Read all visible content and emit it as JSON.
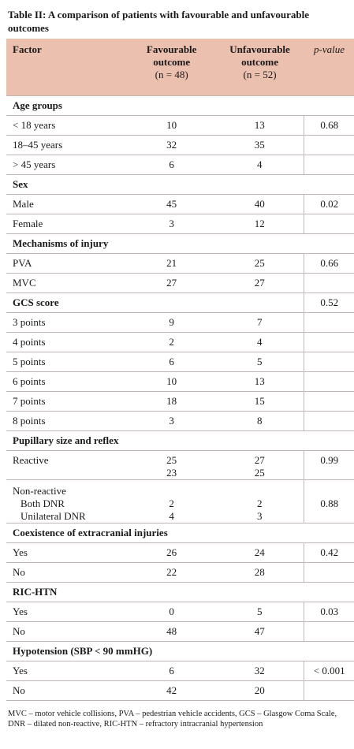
{
  "caption": "Table II: A comparison of patients with favourable and unfavourable outcomes",
  "header": {
    "factor": "Factor",
    "fav_l1": "Favourable",
    "fav_l2": "outcome",
    "fav_l3": "(n = 48)",
    "unfav_l1": "Unfavourable",
    "unfav_l2": "outcome",
    "unfav_l3": "(n = 52)",
    "pvalue": "p-value"
  },
  "sections": {
    "age": "Age groups",
    "sex": "Sex",
    "mech": "Mechanisms of injury",
    "gcs": "GCS score",
    "pupil": "Pupillary size and reflex",
    "extra": "Coexistence of extracranial injuries",
    "ric": "RIC-HTN",
    "hypo": "Hypotension (SBP < 90 mmHG)"
  },
  "rows": {
    "age1": {
      "label": "< 18 years",
      "fav": "10",
      "unfav": "13",
      "p": "0.68"
    },
    "age2": {
      "label": "18–45 years",
      "fav": "32",
      "unfav": "35",
      "p": ""
    },
    "age3": {
      "label": "> 45 years",
      "fav": "6",
      "unfav": "4",
      "p": ""
    },
    "male": {
      "label": "Male",
      "fav": "45",
      "unfav": "40",
      "p": "0.02"
    },
    "female": {
      "label": "Female",
      "fav": "3",
      "unfav": "12",
      "p": ""
    },
    "pva": {
      "label": "PVA",
      "fav": "21",
      "unfav": "25",
      "p": "0.66"
    },
    "mvc": {
      "label": "MVC",
      "fav": "27",
      "unfav": "27",
      "p": ""
    },
    "gcs_p": "0.52",
    "g3": {
      "label": "3 points",
      "fav": "9",
      "unfav": "7"
    },
    "g4": {
      "label": "4 points",
      "fav": "2",
      "unfav": "4"
    },
    "g5": {
      "label": "5 points",
      "fav": "6",
      "unfav": "5"
    },
    "g6": {
      "label": "6 points",
      "fav": "10",
      "unfav": "13"
    },
    "g7": {
      "label": "7 points",
      "fav": "18",
      "unfav": "15"
    },
    "g8": {
      "label": "8 points",
      "fav": "3",
      "unfav": "8"
    },
    "reactive": {
      "label": "Reactive",
      "fav1": "25",
      "fav2": "23",
      "unfav1": "27",
      "unfav2": "25",
      "p": "0.99"
    },
    "nonreactive": {
      "label": "Non-reactive",
      "sub1": "Both DNR",
      "sub2": "Unilateral DNR",
      "fav1": "2",
      "fav2": "4",
      "unfav1": "2",
      "unfav2": "3",
      "p": "0.88"
    },
    "ext_yes": {
      "label": "Yes",
      "fav": "26",
      "unfav": "24",
      "p": "0.42"
    },
    "ext_no": {
      "label": "No",
      "fav": "22",
      "unfav": "28",
      "p": ""
    },
    "ric_yes": {
      "label": "Yes",
      "fav": "0",
      "unfav": "5",
      "p": "0.03"
    },
    "ric_no": {
      "label": "No",
      "fav": "48",
      "unfav": "47",
      "p": ""
    },
    "hyp_yes": {
      "label": "Yes",
      "fav": "6",
      "unfav": "32",
      "p": "< 0.001"
    },
    "hyp_no": {
      "label": "No",
      "fav": "42",
      "unfav": "20",
      "p": ""
    }
  },
  "footnote": "MVC – motor vehicle collisions, PVA – pedestrian vehicle accidents, GCS – Glasgow Coma Scale, DNR – dilated non-reactive, RIC-HTN – refractory intracranial hypertension",
  "colors": {
    "header_bg": "#ecc0ae",
    "rule": "#bfb8b4"
  }
}
